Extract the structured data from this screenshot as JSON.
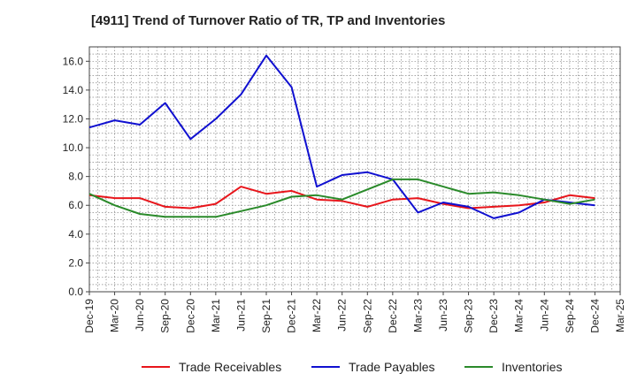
{
  "title": "[4911]  Trend of Turnover Ratio of TR, TP and Inventories",
  "chart_data": {
    "type": "line",
    "title": "[4911]  Trend of Turnover Ratio of TR, TP and Inventories",
    "xlabel": "",
    "ylabel": "",
    "ylim": [
      0,
      17
    ],
    "y_ticks": [
      0.0,
      2.0,
      4.0,
      6.0,
      8.0,
      10.0,
      12.0,
      14.0,
      16.0
    ],
    "x": [
      "Dec-19",
      "Mar-20",
      "Jun-20",
      "Sep-20",
      "Dec-20",
      "Mar-21",
      "Jun-21",
      "Sep-21",
      "Dec-21",
      "Mar-22",
      "Jun-22",
      "Sep-22",
      "Dec-22",
      "Mar-23",
      "Jun-23",
      "Sep-23",
      "Dec-23",
      "Mar-24",
      "Jun-24",
      "Sep-24",
      "Dec-24",
      "Mar-25"
    ],
    "grid": true,
    "legend_position": "bottom",
    "series": [
      {
        "name": "Trade Receivables",
        "color": "#e8151b",
        "values": [
          6.7,
          6.5,
          6.5,
          5.9,
          5.8,
          6.1,
          7.3,
          6.8,
          7.0,
          6.4,
          6.3,
          5.9,
          6.4,
          6.5,
          6.1,
          5.8,
          5.9,
          6.0,
          6.2,
          6.7,
          6.5,
          null
        ]
      },
      {
        "name": "Trade Payables",
        "color": "#1010d0",
        "values": [
          11.4,
          11.9,
          11.6,
          13.1,
          10.6,
          12.0,
          13.7,
          16.4,
          14.2,
          7.3,
          8.1,
          8.3,
          7.8,
          5.5,
          6.2,
          5.9,
          5.1,
          5.5,
          6.4,
          6.2,
          6.0,
          null
        ]
      },
      {
        "name": "Inventories",
        "color": "#2a8a2a",
        "values": [
          6.8,
          6.0,
          5.4,
          5.2,
          5.2,
          5.2,
          5.6,
          6.0,
          6.6,
          6.7,
          6.4,
          7.1,
          7.8,
          7.8,
          7.3,
          6.8,
          6.9,
          6.7,
          6.4,
          6.1,
          6.4,
          null
        ]
      }
    ]
  }
}
